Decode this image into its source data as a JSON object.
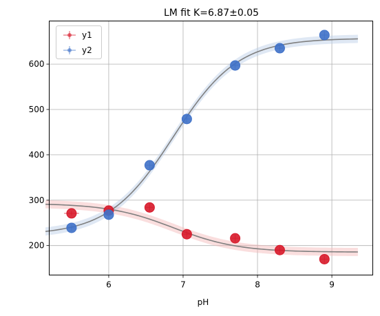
{
  "chart_data": {
    "type": "scatter",
    "title": "LM fit K=6.87±0.05",
    "xlabel": "pH",
    "ylabel": "",
    "xlim": [
      5.2,
      9.55
    ],
    "ylim": [
      135,
      695
    ],
    "xticks": [
      6,
      7,
      8,
      9
    ],
    "xtick_labels": [
      "6",
      "7",
      "8",
      "9"
    ],
    "yticks": [
      200,
      300,
      400,
      500,
      600
    ],
    "ytick_labels": [
      "200",
      "300",
      "400",
      "500",
      "600"
    ],
    "grid": true,
    "legend_position": "top-left",
    "fit": {
      "K": 6.87,
      "x_range": [
        5.15,
        9.35
      ],
      "line_color": "#7f7f7f",
      "band_halfwidth": 9
    },
    "series": [
      {
        "name": "y1",
        "color": "#d7192a",
        "band_color": "#f4b6b6",
        "fit_params": {
          "top": 293,
          "bottom": 185.5
        },
        "x": [
          5.5,
          6.0,
          6.55,
          7.05,
          7.7,
          8.3,
          8.9
        ],
        "y": [
          271,
          277,
          284,
          225,
          216,
          190,
          170
        ],
        "xerr": [
          0.1,
          0.05,
          0.05,
          0.05,
          0.05,
          0.05,
          0.05
        ],
        "yerr": [
          5,
          10,
          8,
          8,
          8,
          8,
          8
        ]
      },
      {
        "name": "y2",
        "color": "#3f71c8",
        "band_color": "#b9cce6",
        "fit_params": {
          "top": 657,
          "bottom": 223
        },
        "x": [
          5.5,
          6.0,
          6.55,
          7.05,
          7.7,
          8.3,
          8.9
        ],
        "y": [
          239,
          268,
          377,
          479,
          597,
          635,
          664
        ],
        "xerr": [
          0.05,
          0.05,
          0.05,
          0.05,
          0.05,
          0.05,
          0.05
        ],
        "yerr": [
          6,
          8,
          8,
          8,
          8,
          8,
          8
        ]
      }
    ]
  }
}
